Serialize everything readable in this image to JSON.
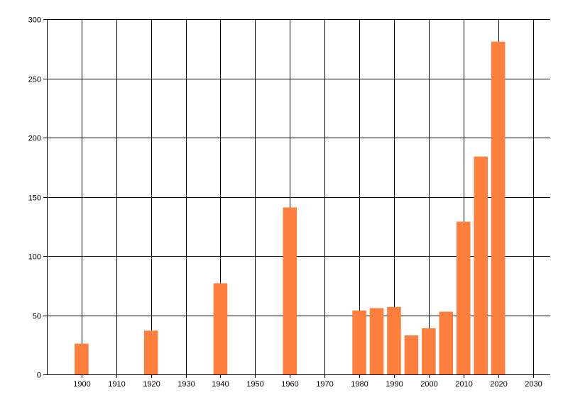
{
  "chart_data": {
    "type": "bar",
    "title": "",
    "xlabel": "",
    "ylabel": "",
    "x": [
      1900,
      1920,
      1940,
      1960,
      1980,
      1985,
      1990,
      1995,
      2000,
      2005,
      2010,
      2015,
      2020
    ],
    "values": [
      26,
      37,
      77,
      141,
      54,
      56,
      57,
      33,
      39,
      53,
      129,
      184,
      281
    ],
    "xlim": [
      1890,
      2035
    ],
    "ylim": [
      0,
      300
    ],
    "xticks": [
      1900,
      1910,
      1920,
      1930,
      1940,
      1950,
      1960,
      1970,
      1980,
      1990,
      2000,
      2010,
      2020,
      2030
    ],
    "yticks": [
      0,
      50,
      100,
      150,
      200,
      250,
      300
    ],
    "grid": true,
    "legend": "none",
    "bar_color": "#FF7F3F",
    "grid_color": "#000000"
  }
}
